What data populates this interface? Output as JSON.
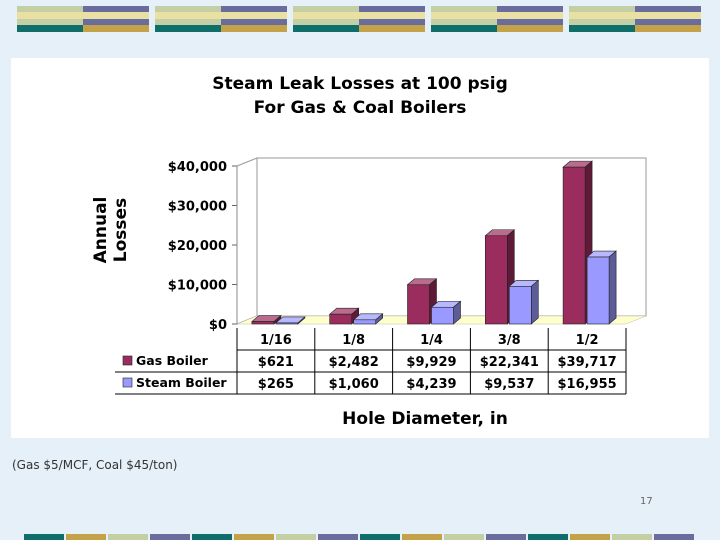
{
  "colors": {
    "background": "#e6f0f8",
    "deco_green_light": "#c5cfa5",
    "deco_purple": "#6a6c9e",
    "deco_cream": "#e9e1a4",
    "deco_teal": "#0f6e6a",
    "deco_gold": "#c4a24a",
    "gas": "#9b2d5e",
    "steam": "#9999ff",
    "floor": "#ffffcc"
  },
  "chart_data": {
    "type": "bar",
    "title": "Steam Leak Losses at 100 psig",
    "subtitle": "For Gas & Coal Boilers",
    "xlabel": "Hole Diameter, in",
    "ylabel": "Annual Losses",
    "ylabel_lines": [
      "Annual",
      "Losses"
    ],
    "categories": [
      "1/16",
      "1/8",
      "1/4",
      "3/8",
      "1/2"
    ],
    "series": [
      {
        "name": "Gas Boiler",
        "values": [
          621,
          2482,
          9929,
          22341,
          39717
        ],
        "labels": [
          "$621",
          "$2,482",
          "$9,929",
          "$22,341",
          "$39,717"
        ]
      },
      {
        "name": "Steam Boiler",
        "values": [
          265,
          1060,
          4239,
          9537,
          16955
        ],
        "labels": [
          "$265",
          "$1,060",
          "$4,239",
          "$9,537",
          "$16,955"
        ]
      }
    ],
    "ylim": [
      0,
      40000
    ],
    "yticks": [
      0,
      10000,
      20000,
      30000,
      40000
    ],
    "ytick_labels": [
      "$0",
      "$10,000",
      "$20,000",
      "$30,000",
      "$40,000"
    ],
    "legend": "data-table",
    "grid": false
  },
  "footnote": "(Gas $5/MCF, Coal $45/ton)",
  "page_number": "17"
}
